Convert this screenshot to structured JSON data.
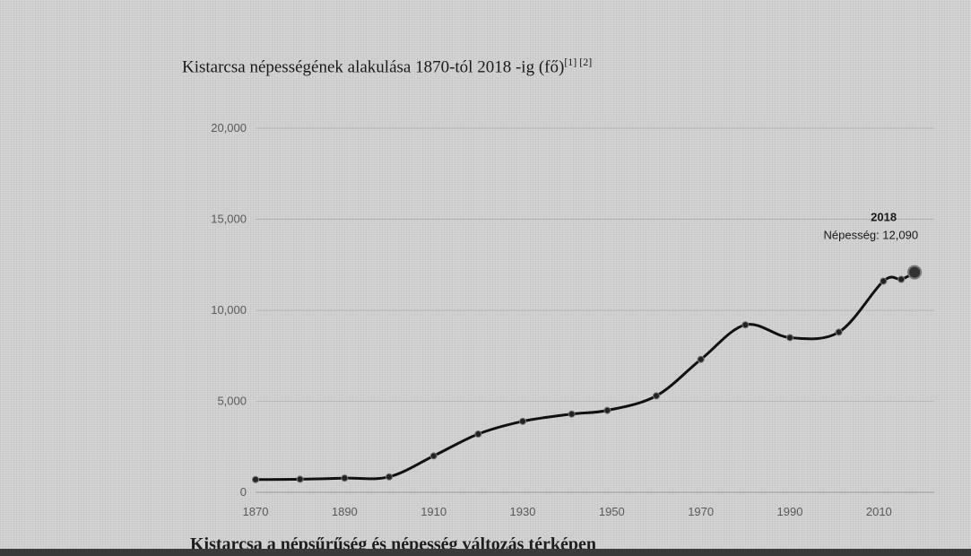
{
  "chart_data": {
    "type": "line",
    "title": "Kistarcsa népességének alakulása 1870-tól 2018 -ig (fő)",
    "title_refs": "[1] [2]",
    "xlabel": "",
    "ylabel": "",
    "x": [
      1870,
      1880,
      1890,
      1900,
      1910,
      1920,
      1930,
      1941,
      1949,
      1960,
      1970,
      1980,
      1990,
      2001,
      2011,
      2015,
      2018
    ],
    "values": [
      700,
      720,
      780,
      850,
      2000,
      3200,
      3900,
      4300,
      4500,
      5300,
      7300,
      9200,
      8500,
      8800,
      11600,
      11700,
      12090
    ],
    "ylim": [
      0,
      20000
    ],
    "xlim": [
      1870,
      2020
    ],
    "yticks": [
      0,
      5000,
      10000,
      15000,
      20000
    ],
    "ytick_labels": [
      "0",
      "5,000",
      "10,000",
      "15,000",
      "20,000"
    ],
    "xticks": [
      1870,
      1890,
      1910,
      1930,
      1950,
      1970,
      1990,
      2010
    ],
    "xtick_labels": [
      "1870",
      "1890",
      "1910",
      "1930",
      "1950",
      "1970",
      "1990",
      "2010"
    ],
    "gridlines": "horizontal",
    "annotation": {
      "x": 2018,
      "year_label": "2018",
      "value_label": "Népesség: 12,090"
    },
    "line_color": "#111111"
  },
  "section": {
    "heading": "Kistarcsa a népsűrűség és népesség változás térképen"
  }
}
